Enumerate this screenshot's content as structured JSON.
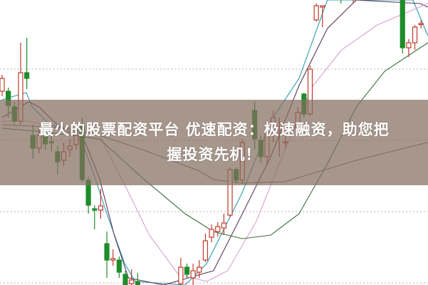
{
  "banner": {
    "line1": "最火的股票配资平台 优速配资：极速融资，助您把",
    "line2": "握投资先机！"
  },
  "chart_data": {
    "type": "candlestick",
    "title": "",
    "xlabel": "",
    "ylabel": "",
    "grid": "horizontal dotted",
    "colors": {
      "up": "#c0392b",
      "down": "#1e8c2a",
      "grid": "#b0b0b0"
    },
    "candles": [
      {
        "i": 0,
        "o": 272,
        "h": 295,
        "l": 265,
        "c": 290
      },
      {
        "i": 1,
        "o": 272,
        "h": 277,
        "l": 235,
        "c": 252
      },
      {
        "i": 2,
        "o": 250,
        "h": 257,
        "l": 225,
        "c": 230
      },
      {
        "i": 3,
        "o": 230,
        "h": 340,
        "l": 225,
        "c": 298
      },
      {
        "i": 4,
        "o": 298,
        "h": 347,
        "l": 275,
        "c": 290
      },
      {
        "i": 5,
        "o": 210,
        "h": 225,
        "l": 177,
        "c": 192
      },
      {
        "i": 6,
        "o": 192,
        "h": 220,
        "l": 185,
        "c": 210
      },
      {
        "i": 7,
        "o": 215,
        "h": 225,
        "l": 190,
        "c": 198
      },
      {
        "i": 8,
        "o": 201,
        "h": 210,
        "l": 187,
        "c": 200
      },
      {
        "i": 9,
        "o": 187,
        "h": 195,
        "l": 155,
        "c": 173
      },
      {
        "i": 10,
        "o": 175,
        "h": 200,
        "l": 167,
        "c": 187
      },
      {
        "i": 11,
        "o": 190,
        "h": 205,
        "l": 180,
        "c": 195
      },
      {
        "i": 12,
        "o": 197,
        "h": 225,
        "l": 190,
        "c": 210
      },
      {
        "i": 13,
        "o": 225,
        "h": 235,
        "l": 145,
        "c": 148
      },
      {
        "i": 14,
        "o": 147,
        "h": 152,
        "l": 100,
        "c": 112
      },
      {
        "i": 15,
        "o": 107,
        "h": 112,
        "l": 78,
        "c": 105
      },
      {
        "i": 16,
        "o": 105,
        "h": 135,
        "l": 93,
        "c": 111
      },
      {
        "i": 17,
        "o": 58,
        "h": 75,
        "l": 10,
        "c": 35
      },
      {
        "i": 18,
        "o": 35,
        "h": 50,
        "l": 27,
        "c": 37
      },
      {
        "i": 19,
        "o": 35,
        "h": 40,
        "l": 10,
        "c": 18
      },
      {
        "i": 20,
        "o": 15,
        "h": 20,
        "l": -5,
        "c": 0
      },
      {
        "i": 21,
        "o": 2,
        "h": 22,
        "l": -5,
        "c": 7
      },
      {
        "i": 22,
        "o": 5,
        "h": 17,
        "l": -5,
        "c": 0
      },
      {
        "i": 29,
        "o": 2,
        "h": 38,
        "l": -5,
        "c": 25
      },
      {
        "i": 30,
        "o": 25,
        "h": 30,
        "l": 10,
        "c": 15
      },
      {
        "i": 31,
        "o": 10,
        "h": 30,
        "l": 0,
        "c": 20
      },
      {
        "i": 32,
        "o": 18,
        "h": 35,
        "l": 10,
        "c": 25
      },
      {
        "i": 33,
        "o": 35,
        "h": 72,
        "l": 32,
        "c": 62
      },
      {
        "i": 34,
        "o": 67,
        "h": 85,
        "l": 60,
        "c": 78
      },
      {
        "i": 35,
        "o": 75,
        "h": 88,
        "l": 68,
        "c": 82
      },
      {
        "i": 36,
        "o": 80,
        "h": 100,
        "l": 70,
        "c": 87
      },
      {
        "i": 37,
        "o": 98,
        "h": 165,
        "l": 95,
        "c": 162
      },
      {
        "i": 38,
        "o": 162,
        "h": 165,
        "l": 142,
        "c": 147
      },
      {
        "i": 39,
        "o": 147,
        "h": 205,
        "l": 142,
        "c": 200
      },
      {
        "i": 41,
        "o": 245,
        "h": 258,
        "l": 190,
        "c": 205
      },
      {
        "i": 42,
        "o": 203,
        "h": 210,
        "l": 172,
        "c": 180
      },
      {
        "i": 43,
        "o": 180,
        "h": 225,
        "l": 168,
        "c": 215
      },
      {
        "i": 44,
        "o": 212,
        "h": 245,
        "l": 200,
        "c": 235
      },
      {
        "i": 45,
        "o": 210,
        "h": 235,
        "l": 180,
        "c": 211
      },
      {
        "i": 46,
        "o": 200,
        "h": 215,
        "l": 192,
        "c": 201
      },
      {
        "i": 48,
        "o": 220,
        "h": 250,
        "l": 215,
        "c": 242
      },
      {
        "i": 49,
        "o": 268,
        "h": 270,
        "l": 235,
        "c": 240
      },
      {
        "i": 50,
        "o": 240,
        "h": 308,
        "l": 237,
        "c": 303
      },
      {
        "i": 51,
        "o": 372,
        "h": 395,
        "l": 370,
        "c": 392
      },
      {
        "i": 52,
        "o": 390,
        "h": 392,
        "l": 362,
        "c": 392
      },
      {
        "i": 55,
        "o": 405,
        "h": 410,
        "l": 395,
        "c": 404
      },
      {
        "i": 57,
        "o": 404,
        "h": 410,
        "l": 395,
        "c": 405
      },
      {
        "i": 65,
        "o": 405,
        "h": 410,
        "l": 325,
        "c": 333
      },
      {
        "i": 66,
        "o": 333,
        "h": 345,
        "l": 320,
        "c": 340
      },
      {
        "i": 67,
        "o": 340,
        "h": 365,
        "l": 330,
        "c": 362
      },
      {
        "i": 68,
        "o": 366,
        "h": 372,
        "l": 360,
        "c": 367
      }
    ],
    "moving_averages": [
      {
        "color": "#2a9bb0",
        "points": [
          [
            0,
            260
          ],
          [
            3.9,
            270
          ],
          [
            4.9,
            250
          ],
          [
            7.7,
            225
          ],
          [
            12.4,
            215
          ],
          [
            14.7,
            160
          ],
          [
            17,
            100
          ],
          [
            19.9,
            30
          ],
          [
            21.6,
            5
          ],
          [
            29.7,
            0
          ],
          [
            33.2,
            30
          ],
          [
            39,
            130
          ],
          [
            43.6,
            230
          ],
          [
            48.2,
            290
          ],
          [
            52.8,
            400
          ],
          [
            66.7,
            400
          ],
          [
            67.9,
            375
          ],
          [
            69.1,
            350
          ]
        ]
      },
      {
        "color": "#5a3a5a",
        "points": [
          [
            0,
            235
          ],
          [
            4.3,
            257
          ],
          [
            6,
            250
          ],
          [
            8.9,
            225
          ],
          [
            13.5,
            200
          ],
          [
            15.8,
            150
          ],
          [
            18.2,
            70
          ],
          [
            20.5,
            10
          ],
          [
            26.2,
            0
          ],
          [
            34.3,
            20
          ],
          [
            39,
            100
          ],
          [
            43.6,
            180
          ],
          [
            48.2,
            280
          ],
          [
            52.8,
            360
          ],
          [
            57.5,
            400
          ],
          [
            67.9,
            395
          ],
          [
            69.1,
            390
          ]
        ]
      },
      {
        "color": "#d9a0d0",
        "points": [
          [
            0,
            230
          ],
          [
            4.3,
            230
          ],
          [
            11.2,
            215
          ],
          [
            15.8,
            210
          ],
          [
            20.5,
            130
          ],
          [
            23.9,
            70
          ],
          [
            28.6,
            15
          ],
          [
            33.2,
            5
          ],
          [
            36.6,
            20
          ],
          [
            41.3,
            90
          ],
          [
            45.9,
            190
          ],
          [
            50.5,
            280
          ],
          [
            55.1,
            330
          ],
          [
            60.9,
            365
          ],
          [
            69.1,
            395
          ]
        ]
      },
      {
        "color": "#3c6e3c",
        "points": [
          [
            0,
            220
          ],
          [
            6.6,
            215
          ],
          [
            11.2,
            210
          ],
          [
            15.8,
            205
          ],
          [
            22.8,
            150
          ],
          [
            29.7,
            100
          ],
          [
            34.3,
            75
          ],
          [
            39,
            65
          ],
          [
            43.6,
            70
          ],
          [
            48.2,
            100
          ],
          [
            52.8,
            170
          ],
          [
            57.5,
            250
          ],
          [
            62.1,
            300
          ],
          [
            69.1,
            340
          ]
        ]
      },
      {
        "color": "#6d6d6d",
        "points": [
          [
            0,
            225
          ],
          [
            11.2,
            220
          ],
          [
            15.8,
            210
          ],
          [
            22.8,
            190
          ],
          [
            32,
            160
          ],
          [
            34.3,
            148
          ],
          [
            39,
            143
          ],
          [
            45.9,
            145
          ],
          [
            51.7,
            160
          ],
          [
            57.5,
            175
          ],
          [
            64.4,
            190
          ],
          [
            69.1,
            200
          ]
        ]
      }
    ],
    "gridlines": [
      303,
      203,
      103,
      3
    ]
  }
}
